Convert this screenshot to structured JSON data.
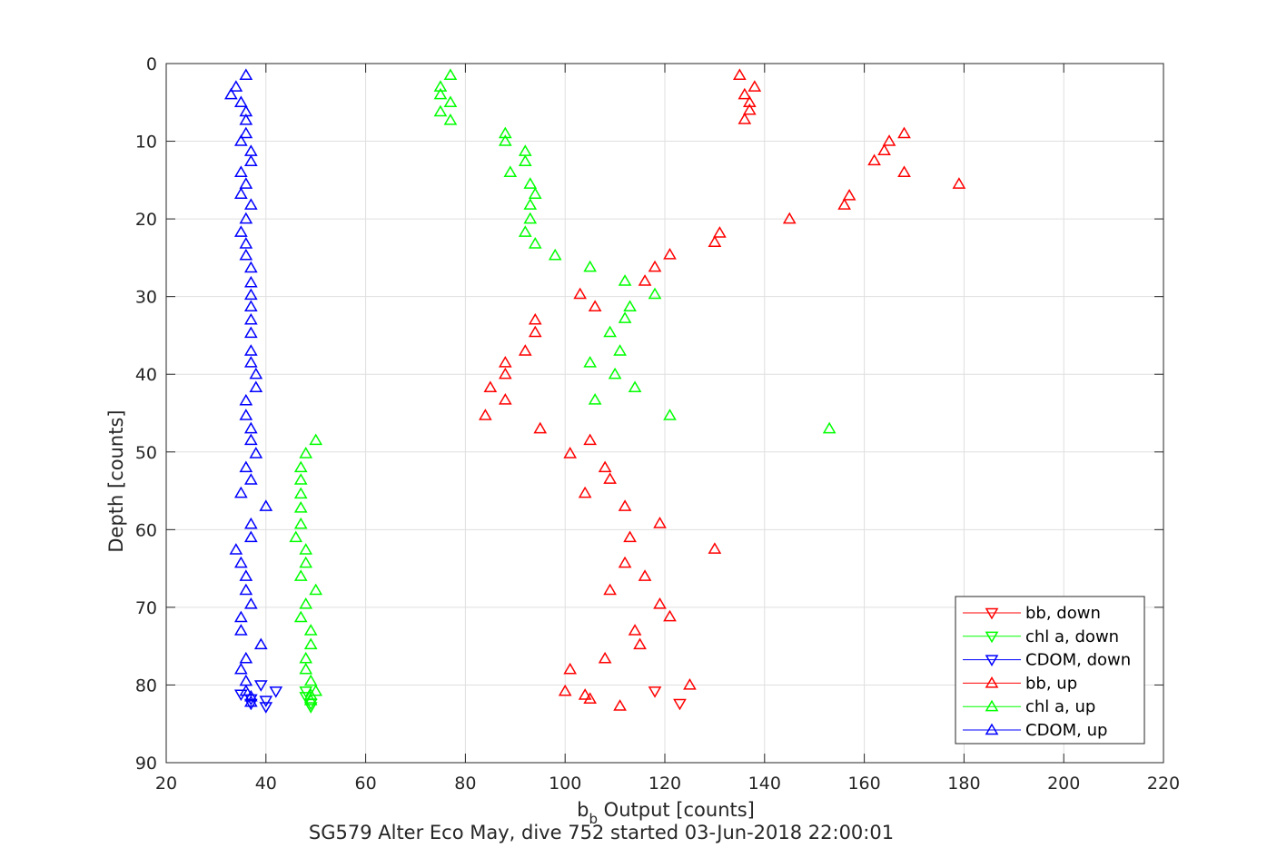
{
  "chart_data": {
    "type": "scatter",
    "title": "SG579 Alter Eco May, dive 752 started 03-Jun-2018 22:00:01",
    "xlabel_main": "b",
    "xlabel_sub": "b",
    "xlabel_rest": " Output [counts]",
    "ylabel": "Depth [counts]",
    "xlim": [
      20,
      220
    ],
    "ylim": [
      0,
      90
    ],
    "y_reversed": true,
    "grid": true,
    "x_ticks": [
      20,
      40,
      60,
      80,
      100,
      120,
      140,
      160,
      180,
      200,
      220
    ],
    "y_ticks": [
      0,
      10,
      20,
      30,
      40,
      50,
      60,
      70,
      80,
      90
    ],
    "legend_position": "bottom-right",
    "series": [
      {
        "name": "bb, down",
        "color": "#ff0000",
        "marker": "triangle-down",
        "points": [
          [
            118,
            80.8
          ],
          [
            123,
            82.4
          ]
        ]
      },
      {
        "name": "chl a, down",
        "color": "#00ff00",
        "marker": "triangle-down",
        "points": [
          [
            48,
            80.8
          ],
          [
            48,
            81.5
          ],
          [
            49,
            82.4
          ],
          [
            49,
            82.8
          ]
        ]
      },
      {
        "name": "CDOM, down",
        "color": "#0000ff",
        "marker": "triangle-down",
        "points": [
          [
            39,
            80
          ],
          [
            42,
            80.8
          ],
          [
            35,
            81.2
          ],
          [
            37,
            81.8
          ],
          [
            40,
            82
          ],
          [
            37,
            82.4
          ],
          [
            40,
            82.8
          ]
        ]
      },
      {
        "name": "bb, up",
        "color": "#ff0000",
        "marker": "triangle-up",
        "points": [
          [
            135,
            1.5
          ],
          [
            138,
            3
          ],
          [
            136,
            4
          ],
          [
            137,
            5
          ],
          [
            137,
            6
          ],
          [
            136,
            7.2
          ],
          [
            168,
            9
          ],
          [
            165,
            10
          ],
          [
            164,
            11.2
          ],
          [
            162,
            12.5
          ],
          [
            168,
            14
          ],
          [
            179,
            15.5
          ],
          [
            157,
            17
          ],
          [
            156,
            18.2
          ],
          [
            145,
            20
          ],
          [
            131,
            21.8
          ],
          [
            130,
            23
          ],
          [
            121,
            24.6
          ],
          [
            118,
            26.2
          ],
          [
            116,
            28
          ],
          [
            103,
            29.7
          ],
          [
            106,
            31.3
          ],
          [
            94,
            33
          ],
          [
            94,
            34.6
          ],
          [
            92,
            37
          ],
          [
            88,
            38.5
          ],
          [
            88,
            40
          ],
          [
            85,
            41.7
          ],
          [
            88,
            43.3
          ],
          [
            84,
            45.3
          ],
          [
            95,
            47
          ],
          [
            105,
            48.5
          ],
          [
            101,
            50.2
          ],
          [
            108,
            52
          ],
          [
            109,
            53.5
          ],
          [
            104,
            55.3
          ],
          [
            112,
            57
          ],
          [
            119,
            59.2
          ],
          [
            113,
            61
          ],
          [
            130,
            62.5
          ],
          [
            112,
            64.3
          ],
          [
            116,
            66
          ],
          [
            109,
            67.8
          ],
          [
            119,
            69.6
          ],
          [
            121,
            71.2
          ],
          [
            114,
            73
          ],
          [
            115,
            74.8
          ],
          [
            108,
            76.6
          ],
          [
            101,
            78
          ],
          [
            125,
            80
          ],
          [
            100,
            80.8
          ],
          [
            104,
            81.3
          ],
          [
            105,
            81.8
          ],
          [
            111,
            82.7
          ]
        ]
      },
      {
        "name": "chl a, up",
        "color": "#00ff00",
        "marker": "triangle-up",
        "points": [
          [
            77,
            1.5
          ],
          [
            75,
            3
          ],
          [
            75,
            4
          ],
          [
            77,
            5
          ],
          [
            75,
            6.2
          ],
          [
            77,
            7.3
          ],
          [
            88,
            9
          ],
          [
            88,
            10
          ],
          [
            92,
            11.3
          ],
          [
            92,
            12.6
          ],
          [
            89,
            14
          ],
          [
            93,
            15.5
          ],
          [
            94,
            16.8
          ],
          [
            93,
            18.2
          ],
          [
            93,
            20
          ],
          [
            92,
            21.7
          ],
          [
            94,
            23.2
          ],
          [
            98,
            24.7
          ],
          [
            105,
            26.2
          ],
          [
            112,
            28
          ],
          [
            118,
            29.7
          ],
          [
            113,
            31.3
          ],
          [
            112,
            32.8
          ],
          [
            109,
            34.6
          ],
          [
            111,
            37
          ],
          [
            105,
            38.5
          ],
          [
            110,
            40
          ],
          [
            114,
            41.7
          ],
          [
            106,
            43.3
          ],
          [
            121,
            45.3
          ],
          [
            153,
            47
          ],
          [
            50,
            48.5
          ],
          [
            48,
            50.2
          ],
          [
            47,
            52
          ],
          [
            47,
            53.6
          ],
          [
            47,
            55.4
          ],
          [
            47,
            57.2
          ],
          [
            47,
            59.3
          ],
          [
            46,
            61
          ],
          [
            48,
            62.6
          ],
          [
            48,
            64.3
          ],
          [
            47,
            66
          ],
          [
            50,
            67.8
          ],
          [
            48,
            69.6
          ],
          [
            47,
            71.3
          ],
          [
            49,
            73
          ],
          [
            49,
            74.8
          ],
          [
            48,
            76.6
          ],
          [
            48,
            78
          ],
          [
            49,
            79.5
          ],
          [
            50,
            80.8
          ],
          [
            49,
            81.3
          ],
          [
            49,
            82
          ]
        ]
      },
      {
        "name": "CDOM, up",
        "color": "#0000ff",
        "marker": "triangle-up",
        "points": [
          [
            36,
            1.5
          ],
          [
            34,
            3
          ],
          [
            33,
            4
          ],
          [
            35,
            5
          ],
          [
            36,
            6.2
          ],
          [
            36,
            7.3
          ],
          [
            36,
            9
          ],
          [
            35,
            10
          ],
          [
            37,
            11.3
          ],
          [
            37,
            12.6
          ],
          [
            35,
            14
          ],
          [
            36,
            15.5
          ],
          [
            35,
            16.8
          ],
          [
            37,
            18.2
          ],
          [
            36,
            20
          ],
          [
            35,
            21.7
          ],
          [
            36,
            23.2
          ],
          [
            36,
            24.7
          ],
          [
            37,
            26.3
          ],
          [
            37,
            28.2
          ],
          [
            37,
            29.8
          ],
          [
            37,
            31.3
          ],
          [
            37,
            33
          ],
          [
            37,
            34.7
          ],
          [
            37,
            37
          ],
          [
            37,
            38.5
          ],
          [
            38,
            40
          ],
          [
            38,
            41.7
          ],
          [
            36,
            43.4
          ],
          [
            36,
            45.3
          ],
          [
            37,
            47
          ],
          [
            37,
            48.5
          ],
          [
            38,
            50.2
          ],
          [
            36,
            52
          ],
          [
            37,
            53.6
          ],
          [
            35,
            55.3
          ],
          [
            40,
            57
          ],
          [
            37,
            59.3
          ],
          [
            37,
            61
          ],
          [
            34,
            62.6
          ],
          [
            35,
            64.3
          ],
          [
            36,
            66
          ],
          [
            36,
            67.8
          ],
          [
            37,
            69.6
          ],
          [
            35,
            71.3
          ],
          [
            35,
            73
          ],
          [
            39,
            74.8
          ],
          [
            36,
            76.6
          ],
          [
            35,
            78
          ],
          [
            36,
            79.5
          ],
          [
            36,
            80.8
          ],
          [
            37,
            81.5
          ],
          [
            37,
            82.2
          ]
        ]
      }
    ]
  }
}
